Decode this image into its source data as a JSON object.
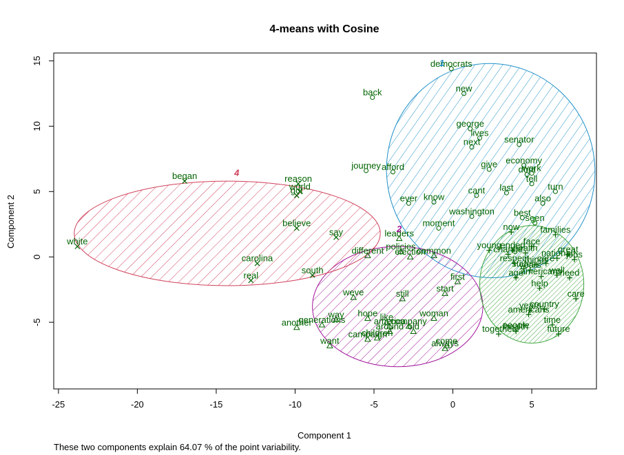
{
  "chart_data": {
    "type": "scatter",
    "title": "4-means with Cosine",
    "xlabel": "Component 1",
    "ylabel": "Component 2",
    "xlim": [
      -25.3,
      9.1
    ],
    "ylim": [
      -10.1,
      15.6
    ],
    "xticks": [
      -25,
      -20,
      -15,
      -10,
      -5,
      0,
      5
    ],
    "yticks": [
      -5,
      0,
      5,
      10,
      15
    ],
    "footnote": "These two components explain 64.07 % of the point variability.",
    "colors": {
      "text": "#006400",
      "cluster1": "#1E90C8",
      "cluster2": "#A0139A",
      "cluster3": "#3FA63F",
      "cluster4": "#D0405A"
    },
    "clusters": [
      {
        "id": "1",
        "label": "1",
        "marker": "circle",
        "color": "#1E90C8",
        "ellipse": {
          "cx": 2.4,
          "cy": 6.6,
          "rx": 6.6,
          "ry": 8.2,
          "angle": 10
        },
        "label_at": [
          -0.7,
          14.6
        ]
      },
      {
        "id": "2",
        "label": "2",
        "marker": "triangle",
        "color": "#A0139A",
        "ellipse": {
          "cx": -3.5,
          "cy": -3.8,
          "rx": 5.4,
          "ry": 4.6,
          "angle": 0
        },
        "label_at": [
          -3.4,
          1.9
        ]
      },
      {
        "id": "3",
        "label": "3",
        "marker": "plus",
        "color": "#3FA63F",
        "ellipse": {
          "cx": 5.0,
          "cy": -2.1,
          "rx": 3.3,
          "ry": 4.5,
          "angle": 0
        },
        "label_at": [
          5.1,
          2.6
        ]
      },
      {
        "id": "4",
        "label": "4",
        "marker": "cross",
        "color": "#D0405A",
        "ellipse": {
          "cx": -14.3,
          "cy": 1.8,
          "rx": 9.7,
          "ry": 4.0,
          "angle": 0
        },
        "label_at": [
          -13.7,
          6.2
        ]
      }
    ],
    "points": [
      {
        "word": "democrats",
        "x": -0.1,
        "y": 14.4,
        "cluster": "1"
      },
      {
        "word": "back",
        "x": -5.1,
        "y": 12.2,
        "cluster": "1"
      },
      {
        "word": "new",
        "x": 0.7,
        "y": 12.5,
        "cluster": "1"
      },
      {
        "word": "george",
        "x": 1.1,
        "y": 9.8,
        "cluster": "1"
      },
      {
        "word": "lives",
        "x": 1.7,
        "y": 9.1,
        "cluster": "1"
      },
      {
        "word": "next",
        "x": 1.2,
        "y": 8.4,
        "cluster": "1"
      },
      {
        "word": "senator",
        "x": 4.2,
        "y": 8.6,
        "cluster": "1"
      },
      {
        "word": "economy",
        "x": 4.5,
        "y": 7.0,
        "cluster": "1"
      },
      {
        "word": "give",
        "x": 2.3,
        "y": 6.7,
        "cluster": "1"
      },
      {
        "word": "work",
        "x": 5.0,
        "y": 6.4,
        "cluster": "1"
      },
      {
        "word": "dont",
        "x": 4.7,
        "y": 6.3,
        "cluster": "1"
      },
      {
        "word": "journey",
        "x": -5.5,
        "y": 6.6,
        "cluster": "1"
      },
      {
        "word": "afford",
        "x": -3.8,
        "y": 6.5,
        "cluster": "1"
      },
      {
        "word": "tell",
        "x": 5.0,
        "y": 5.6,
        "cluster": "1"
      },
      {
        "word": "turn",
        "x": 6.5,
        "y": 5.0,
        "cluster": "1"
      },
      {
        "word": "cant",
        "x": 1.5,
        "y": 4.7,
        "cluster": "1"
      },
      {
        "word": "last",
        "x": 3.4,
        "y": 4.9,
        "cluster": "1"
      },
      {
        "word": "also",
        "x": 5.7,
        "y": 4.1,
        "cluster": "1"
      },
      {
        "word": "ever",
        "x": -2.8,
        "y": 4.1,
        "cluster": "1"
      },
      {
        "word": "know",
        "x": -1.2,
        "y": 4.2,
        "cluster": "1"
      },
      {
        "word": "washington",
        "x": 1.2,
        "y": 3.1,
        "cluster": "1"
      },
      {
        "word": "best",
        "x": 4.4,
        "y": 3.0,
        "cluster": "1"
      },
      {
        "word": "seen",
        "x": 5.2,
        "y": 2.6,
        "cluster": "1"
      },
      {
        "word": "moment",
        "x": -0.9,
        "y": 2.2,
        "cluster": "1"
      },
      {
        "word": "leaders",
        "x": -3.4,
        "y": 1.4,
        "cluster": "2"
      },
      {
        "word": "policies",
        "x": -3.3,
        "y": 0.4,
        "cluster": "2"
      },
      {
        "word": "different",
        "x": -5.4,
        "y": 0.1,
        "cluster": "2"
      },
      {
        "word": "election",
        "x": -2.7,
        "y": 0.0,
        "cluster": "2"
      },
      {
        "word": "common",
        "x": -1.2,
        "y": 0.1,
        "cluster": "2"
      },
      {
        "word": "first",
        "x": 0.3,
        "y": -1.9,
        "cluster": "2"
      },
      {
        "word": "start",
        "x": -0.5,
        "y": -2.8,
        "cluster": "2"
      },
      {
        "word": "weve",
        "x": -6.3,
        "y": -3.1,
        "cluster": "2"
      },
      {
        "word": "still",
        "x": -3.2,
        "y": -3.2,
        "cluster": "2"
      },
      {
        "word": "hope",
        "x": -5.4,
        "y": -4.7,
        "cluster": "2"
      },
      {
        "word": "way",
        "x": -7.4,
        "y": -4.8,
        "cluster": "2"
      },
      {
        "word": "woman",
        "x": -1.2,
        "y": -4.7,
        "cluster": "2"
      },
      {
        "word": "like",
        "x": -4.2,
        "y": -5.0,
        "cluster": "2"
      },
      {
        "word": "generations",
        "x": -8.3,
        "y": -5.2,
        "cluster": "2"
      },
      {
        "word": "another",
        "x": -9.9,
        "y": -5.4,
        "cluster": "2"
      },
      {
        "word": "america",
        "x": -4.0,
        "y": -5.3,
        "cluster": "2"
      },
      {
        "word": "company",
        "x": -2.8,
        "y": -5.3,
        "cluster": "2"
      },
      {
        "word": "around",
        "x": -4.0,
        "y": -5.7,
        "cluster": "2"
      },
      {
        "word": "old",
        "x": -2.5,
        "y": -5.7,
        "cluster": "2"
      },
      {
        "word": "campaign",
        "x": -5.4,
        "y": -6.3,
        "cluster": "2"
      },
      {
        "word": "children",
        "x": -4.8,
        "y": -6.2,
        "cluster": "2"
      },
      {
        "word": "want",
        "x": -7.8,
        "y": -6.8,
        "cluster": "2"
      },
      {
        "word": "come",
        "x": -0.4,
        "y": -6.8,
        "cluster": "2"
      },
      {
        "word": "always",
        "x": -0.5,
        "y": -7.0,
        "cluster": "2"
      },
      {
        "word": "families",
        "x": 6.5,
        "y": 1.7,
        "cluster": "3"
      },
      {
        "word": "now",
        "x": 3.7,
        "y": 1.9,
        "cluster": "3"
      },
      {
        "word": "face",
        "x": 5.0,
        "y": 0.8,
        "cluster": "3"
      },
      {
        "word": "young",
        "x": 2.3,
        "y": 0.5,
        "cluster": "3"
      },
      {
        "word": "ended",
        "x": 3.8,
        "y": 0.5,
        "cluster": "3"
      },
      {
        "word": "change",
        "x": 3.5,
        "y": 0.2,
        "cluster": "3"
      },
      {
        "word": "health",
        "x": 4.6,
        "y": 0.3,
        "cluster": "3"
      },
      {
        "word": "national",
        "x": 6.6,
        "y": -0.1,
        "cluster": "3"
      },
      {
        "word": "great",
        "x": 7.3,
        "y": 0.2,
        "cluster": "3"
      },
      {
        "word": "jobs",
        "x": 7.7,
        "y": -0.2,
        "cluster": "3"
      },
      {
        "word": "respect",
        "x": 3.9,
        "y": -0.5,
        "cluster": "3"
      },
      {
        "word": "things",
        "x": 5.3,
        "y": -0.6,
        "cluster": "3"
      },
      {
        "word": "care",
        "x": 5.9,
        "y": -0.5,
        "cluster": "3"
      },
      {
        "word": "states",
        "x": 4.5,
        "y": -0.9,
        "cluster": "3"
      },
      {
        "word": "years",
        "x": 4.9,
        "y": -1.0,
        "cluster": "3"
      },
      {
        "word": "well",
        "x": 6.6,
        "y": -1.4,
        "cluster": "3"
      },
      {
        "word": "americans",
        "x": 5.6,
        "y": -1.5,
        "cluster": "3"
      },
      {
        "word": "age",
        "x": 4.0,
        "y": -1.6,
        "cluster": "3"
      },
      {
        "word": "need",
        "x": 7.4,
        "y": -1.6,
        "cluster": "3"
      },
      {
        "word": "help",
        "x": 5.5,
        "y": -2.4,
        "cluster": "3"
      },
      {
        "word": "care",
        "x": 7.8,
        "y": -3.2,
        "cluster": "3"
      },
      {
        "word": "country",
        "x": 5.8,
        "y": -4.0,
        "cluster": "3"
      },
      {
        "word": "years",
        "x": 4.9,
        "y": -4.1,
        "cluster": "3"
      },
      {
        "word": "americans",
        "x": 4.8,
        "y": -4.4,
        "cluster": "3"
      },
      {
        "word": "time",
        "x": 6.3,
        "y": -5.2,
        "cluster": "3"
      },
      {
        "word": "people",
        "x": 4.0,
        "y": -5.6,
        "cluster": "3"
      },
      {
        "word": "together",
        "x": 2.9,
        "y": -5.9,
        "cluster": "3"
      },
      {
        "word": "health",
        "x": 4.0,
        "y": -5.7,
        "cluster": "3"
      },
      {
        "word": "future",
        "x": 6.7,
        "y": -5.9,
        "cluster": "3"
      },
      {
        "word": "began",
        "x": -17.0,
        "y": 5.8,
        "cluster": "4"
      },
      {
        "word": "reason",
        "x": -9.8,
        "y": 5.6,
        "cluster": "4"
      },
      {
        "word": "world",
        "x": -9.7,
        "y": 5.0,
        "cluster": "4"
      },
      {
        "word": "got",
        "x": -9.9,
        "y": 4.7,
        "cluster": "4"
      },
      {
        "word": "believe",
        "x": -9.9,
        "y": 2.2,
        "cluster": "4"
      },
      {
        "word": "say",
        "x": -7.4,
        "y": 1.5,
        "cluster": "4"
      },
      {
        "word": "white",
        "x": -23.8,
        "y": 0.8,
        "cluster": "4"
      },
      {
        "word": "carolina",
        "x": -12.4,
        "y": -0.5,
        "cluster": "4"
      },
      {
        "word": "south",
        "x": -8.9,
        "y": -1.4,
        "cluster": "4"
      },
      {
        "word": "real",
        "x": -12.8,
        "y": -1.8,
        "cluster": "4"
      }
    ]
  }
}
